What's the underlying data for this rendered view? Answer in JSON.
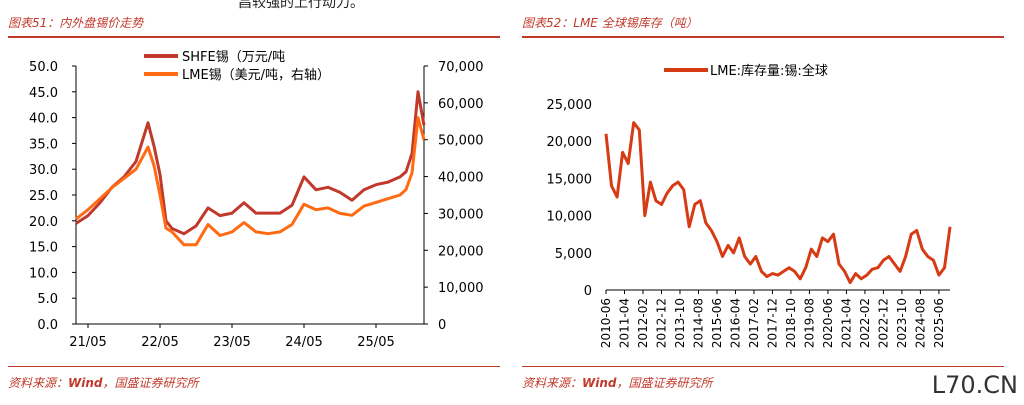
{
  "page": {
    "top_text": "昌较强的上行动力。",
    "watermark": "L70.CN"
  },
  "charts": [
    {
      "caption": "图表51：内外盘锡价走势",
      "source_prefix": "资料来源：",
      "source_bold": "Wind",
      "source_suffix": "，国盛证券研究所"
    },
    {
      "caption": "图表52：LME 全球锡库存（吨）",
      "source_prefix": "资料来源：",
      "source_bold": "Wind",
      "source_suffix": "，国盛证券研究所"
    }
  ],
  "colors": {
    "accent": "#c0392b",
    "shfe": "#c0392b",
    "lme": "#ff6a13",
    "lme_stock": "#d63b14"
  },
  "chart_data": [
    {
      "type": "line",
      "title": "",
      "x_ticks": [
        "21/05",
        "22/05",
        "23/05",
        "24/05",
        "25/05"
      ],
      "y_left_ticks": [
        "0.0",
        "5.0",
        "10.0",
        "15.0",
        "20.0",
        "25.0",
        "30.0",
        "35.0",
        "40.0",
        "45.0",
        "50.0"
      ],
      "y_right_ticks": [
        "0",
        "10,000",
        "20,000",
        "30,000",
        "40,000",
        "50,000",
        "60,000",
        "70,000"
      ],
      "ylim_left": [
        0,
        50
      ],
      "ylim_right": [
        0,
        70000
      ],
      "legend_position": "top-center",
      "series": [
        {
          "name": "SHFE锡（万元/吨",
          "axis": "left",
          "x": [
            "2021-03",
            "2021-05",
            "2021-07",
            "2021-09",
            "2021-11",
            "2022-01",
            "2022-03",
            "2022-04",
            "2022-05",
            "2022-06",
            "2022-07",
            "2022-09",
            "2022-11",
            "2023-01",
            "2023-03",
            "2023-05",
            "2023-07",
            "2023-09",
            "2023-11",
            "2024-01",
            "2024-03",
            "2024-05",
            "2024-07",
            "2024-09",
            "2024-11",
            "2025-01",
            "2025-03",
            "2025-05",
            "2025-07",
            "2025-09",
            "2025-10",
            "2025-11",
            "2025-12",
            "2026-01"
          ],
          "values": [
            19.5,
            21.0,
            23.5,
            26.5,
            28.5,
            31.5,
            39.0,
            34.5,
            29.0,
            20.0,
            18.5,
            17.5,
            19.0,
            22.5,
            21.0,
            21.5,
            23.5,
            21.5,
            21.5,
            21.5,
            23.0,
            28.5,
            26.0,
            26.5,
            25.5,
            24.0,
            26.0,
            27.0,
            27.5,
            28.5,
            29.5,
            33.0,
            45.0,
            38.5
          ]
        },
        {
          "name": "LME锡（美元/吨，右轴）",
          "axis": "right",
          "x": [
            "2021-03",
            "2021-05",
            "2021-07",
            "2021-09",
            "2021-11",
            "2022-01",
            "2022-03",
            "2022-04",
            "2022-05",
            "2022-06",
            "2022-07",
            "2022-09",
            "2022-11",
            "2023-01",
            "2023-03",
            "2023-05",
            "2023-07",
            "2023-09",
            "2023-11",
            "2024-01",
            "2024-03",
            "2024-05",
            "2024-07",
            "2024-09",
            "2024-11",
            "2025-01",
            "2025-03",
            "2025-05",
            "2025-07",
            "2025-09",
            "2025-10",
            "2025-11",
            "2025-12",
            "2026-01"
          ],
          "values": [
            28500,
            31000,
            34000,
            37000,
            39500,
            42000,
            48000,
            43000,
            35000,
            26000,
            25000,
            21500,
            21500,
            27000,
            24000,
            25000,
            27500,
            25000,
            24500,
            25000,
            27000,
            32500,
            31000,
            31500,
            30000,
            29500,
            32000,
            33000,
            34000,
            35000,
            36500,
            41000,
            56000,
            50000
          ]
        }
      ]
    },
    {
      "type": "line",
      "title": "",
      "x_ticks": [
        "2010-06",
        "2011-04",
        "2012-02",
        "2012-12",
        "2013-10",
        "2014-08",
        "2015-06",
        "2016-04",
        "2017-02",
        "2017-12",
        "2018-10",
        "2019-08",
        "2020-06",
        "2021-04",
        "2022-02",
        "2022-12",
        "2023-10",
        "2024-08",
        "2025-06"
      ],
      "y_ticks": [
        "0",
        "5,000",
        "10,000",
        "15,000",
        "20,000",
        "25,000"
      ],
      "ylim": [
        0,
        25000
      ],
      "legend_position": "top-center",
      "series": [
        {
          "name": "LME:库存量:锡:全球",
          "x": [
            "2010-06",
            "2010-09",
            "2010-12",
            "2011-03",
            "2011-06",
            "2011-09",
            "2011-12",
            "2012-03",
            "2012-06",
            "2012-09",
            "2012-12",
            "2013-03",
            "2013-06",
            "2013-09",
            "2013-12",
            "2014-03",
            "2014-06",
            "2014-09",
            "2014-12",
            "2015-03",
            "2015-06",
            "2015-09",
            "2015-12",
            "2016-03",
            "2016-06",
            "2016-09",
            "2016-12",
            "2017-03",
            "2017-06",
            "2017-09",
            "2017-12",
            "2018-03",
            "2018-06",
            "2018-09",
            "2018-12",
            "2019-03",
            "2019-06",
            "2019-09",
            "2019-12",
            "2020-03",
            "2020-06",
            "2020-09",
            "2020-12",
            "2021-03",
            "2021-06",
            "2021-09",
            "2021-12",
            "2022-03",
            "2022-06",
            "2022-09",
            "2022-12",
            "2023-03",
            "2023-06",
            "2023-09",
            "2023-12",
            "2024-03",
            "2024-06",
            "2024-09",
            "2024-12",
            "2025-03",
            "2025-06",
            "2025-09",
            "2025-12"
          ],
          "values": [
            21000,
            14000,
            12500,
            18500,
            17000,
            22500,
            21500,
            10000,
            14500,
            12000,
            11500,
            13000,
            14000,
            14500,
            13500,
            8500,
            11500,
            12000,
            9000,
            8000,
            6500,
            4500,
            6000,
            5000,
            7000,
            4500,
            3500,
            4500,
            2500,
            1800,
            2200,
            2000,
            2500,
            3000,
            2500,
            1500,
            3000,
            5500,
            4500,
            7000,
            6500,
            7500,
            3500,
            2500,
            1000,
            2200,
            1500,
            2000,
            2800,
            3000,
            4000,
            4500,
            3500,
            2500,
            4500,
            7500,
            8000,
            5500,
            4500,
            4000,
            2000,
            3000,
            8500
          ]
        }
      ]
    }
  ]
}
